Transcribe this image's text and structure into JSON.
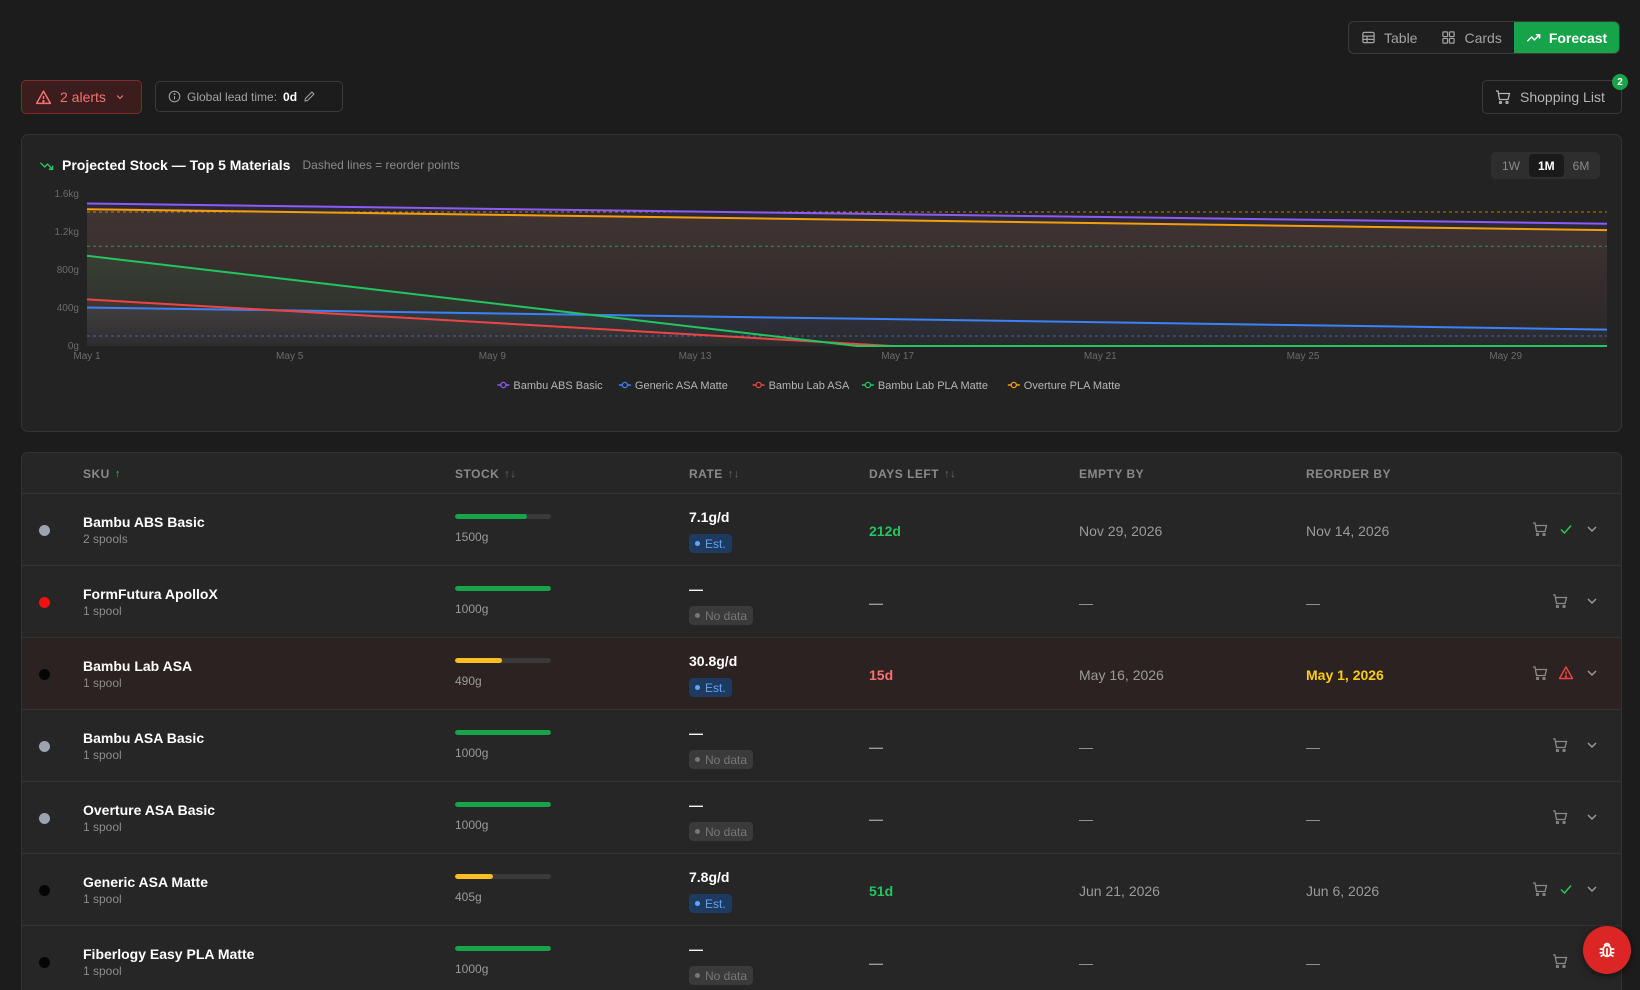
{
  "view_toggle": [
    {
      "label": "Table",
      "icon": "table-icon",
      "active": false
    },
    {
      "label": "Cards",
      "icon": "grid-icon",
      "active": false
    },
    {
      "label": "Forecast",
      "icon": "trending-up-icon",
      "active": true
    }
  ],
  "alerts": {
    "label": "2 alerts"
  },
  "lead_time": {
    "label": "Global lead time:",
    "value": "0d"
  },
  "shopping_list": {
    "label": "Shopping List",
    "count": "2"
  },
  "chart_panel": {
    "title": "Projected Stock — Top 5 Materials",
    "subtitle": "Dashed lines = reorder points",
    "ranges": [
      "1W",
      "1M",
      "6M"
    ],
    "active_range": "1M"
  },
  "chart_data": {
    "type": "line",
    "title": "Projected Stock — Top 5 Materials",
    "x": [
      "May 1",
      "May 31"
    ],
    "xtick_labels": [
      "May 1",
      "May 5",
      "May 9",
      "May 13",
      "May 17",
      "May 21",
      "May 25",
      "May 29"
    ],
    "ytick_labels": [
      "0g",
      "400g",
      "800g",
      "1.2kg",
      "1.6kg"
    ],
    "ylim": [
      0,
      1600
    ],
    "legend_position": "bottom",
    "series": [
      {
        "name": "Bambu ABS Basic",
        "color": "#8b5cf6",
        "values": [
          1500,
          1287
        ],
        "reorder_point": null
      },
      {
        "name": "Generic ASA Matte",
        "color": "#3b82f6",
        "values": [
          405,
          173
        ],
        "reorder_point": 105
      },
      {
        "name": "Bambu Lab ASA",
        "color": "#ef4444",
        "values": [
          490,
          0
        ],
        "zero_at_day": 15.9,
        "reorder_point": null
      },
      {
        "name": "Bambu Lab PLA Matte",
        "color": "#22c55e",
        "values": [
          950,
          0
        ],
        "zero_at_day": 15.2,
        "reorder_point": 1050
      },
      {
        "name": "Overture PLA Matte",
        "color": "#f59e0b",
        "values": [
          1440,
          1220
        ],
        "reorder_point": 1410
      }
    ]
  },
  "table": {
    "headers": {
      "sku": "SKU",
      "stock": "STOCK",
      "rate": "RATE",
      "days_left": "DAYS LEFT",
      "empty_by": "EMPTY BY",
      "reorder_by": "REORDER BY"
    },
    "rows": [
      {
        "name": "Bambu ABS Basic",
        "spools": "2 spools",
        "dot": "#9ca3af",
        "stock": "1500g",
        "stock_fraction": 0.75,
        "bar": "#16a34a",
        "rate": "7.1g/d",
        "rate_tag": "Est.",
        "days": "212d",
        "days_color": "#22c55e",
        "empty_by": "Nov 29, 2026",
        "reorder_by": "Nov 14, 2026",
        "reorder_warn": false,
        "status_icon": "check-icon",
        "alert": false
      },
      {
        "name": "FormFutura ApolloX",
        "spools": "1 spool",
        "dot": "#ef1111",
        "stock": "1000g",
        "stock_fraction": 1.0,
        "bar": "#16a34a",
        "rate": "—",
        "rate_tag": "No data",
        "days": "—",
        "days_color": "#9a9a9a",
        "empty_by": "—",
        "reorder_by": "—",
        "reorder_warn": false,
        "status_icon": "",
        "alert": false
      },
      {
        "name": "Bambu Lab ASA",
        "spools": "1 spool",
        "dot": "#050505",
        "stock": "490g",
        "stock_fraction": 0.49,
        "bar": "#fbbf24",
        "rate": "30.8g/d",
        "rate_tag": "Est.",
        "days": "15d",
        "days_color": "#f87171",
        "empty_by": "May 16, 2026",
        "reorder_by": "May 1, 2026",
        "reorder_warn": true,
        "status_icon": "alert-triangle-icon",
        "alert": true
      },
      {
        "name": "Bambu ASA Basic",
        "spools": "1 spool",
        "dot": "#9ca3af",
        "stock": "1000g",
        "stock_fraction": 1.0,
        "bar": "#16a34a",
        "rate": "—",
        "rate_tag": "No data",
        "days": "—",
        "days_color": "#9a9a9a",
        "empty_by": "—",
        "reorder_by": "—",
        "reorder_warn": false,
        "status_icon": "",
        "alert": false
      },
      {
        "name": "Overture ASA Basic",
        "spools": "1 spool",
        "dot": "#9ca3af",
        "stock": "1000g",
        "stock_fraction": 1.0,
        "bar": "#16a34a",
        "rate": "—",
        "rate_tag": "No data",
        "days": "—",
        "days_color": "#9a9a9a",
        "empty_by": "—",
        "reorder_by": "—",
        "reorder_warn": false,
        "status_icon": "",
        "alert": false
      },
      {
        "name": "Generic ASA Matte",
        "spools": "1 spool",
        "dot": "#050505",
        "stock": "405g",
        "stock_fraction": 0.4,
        "bar": "#fbbf24",
        "rate": "7.8g/d",
        "rate_tag": "Est.",
        "days": "51d",
        "days_color": "#22c55e",
        "empty_by": "Jun 21, 2026",
        "reorder_by": "Jun 6, 2026",
        "reorder_warn": false,
        "status_icon": "check-icon",
        "alert": false
      },
      {
        "name": "Fiberlogy Easy PLA Matte",
        "spools": "1 spool",
        "dot": "#050505",
        "stock": "1000g",
        "stock_fraction": 1.0,
        "bar": "#16a34a",
        "rate": "—",
        "rate_tag": "No data",
        "days": "—",
        "days_color": "#9a9a9a",
        "empty_by": "—",
        "reorder_by": "—",
        "reorder_warn": false,
        "status_icon": "",
        "alert": false
      }
    ]
  }
}
